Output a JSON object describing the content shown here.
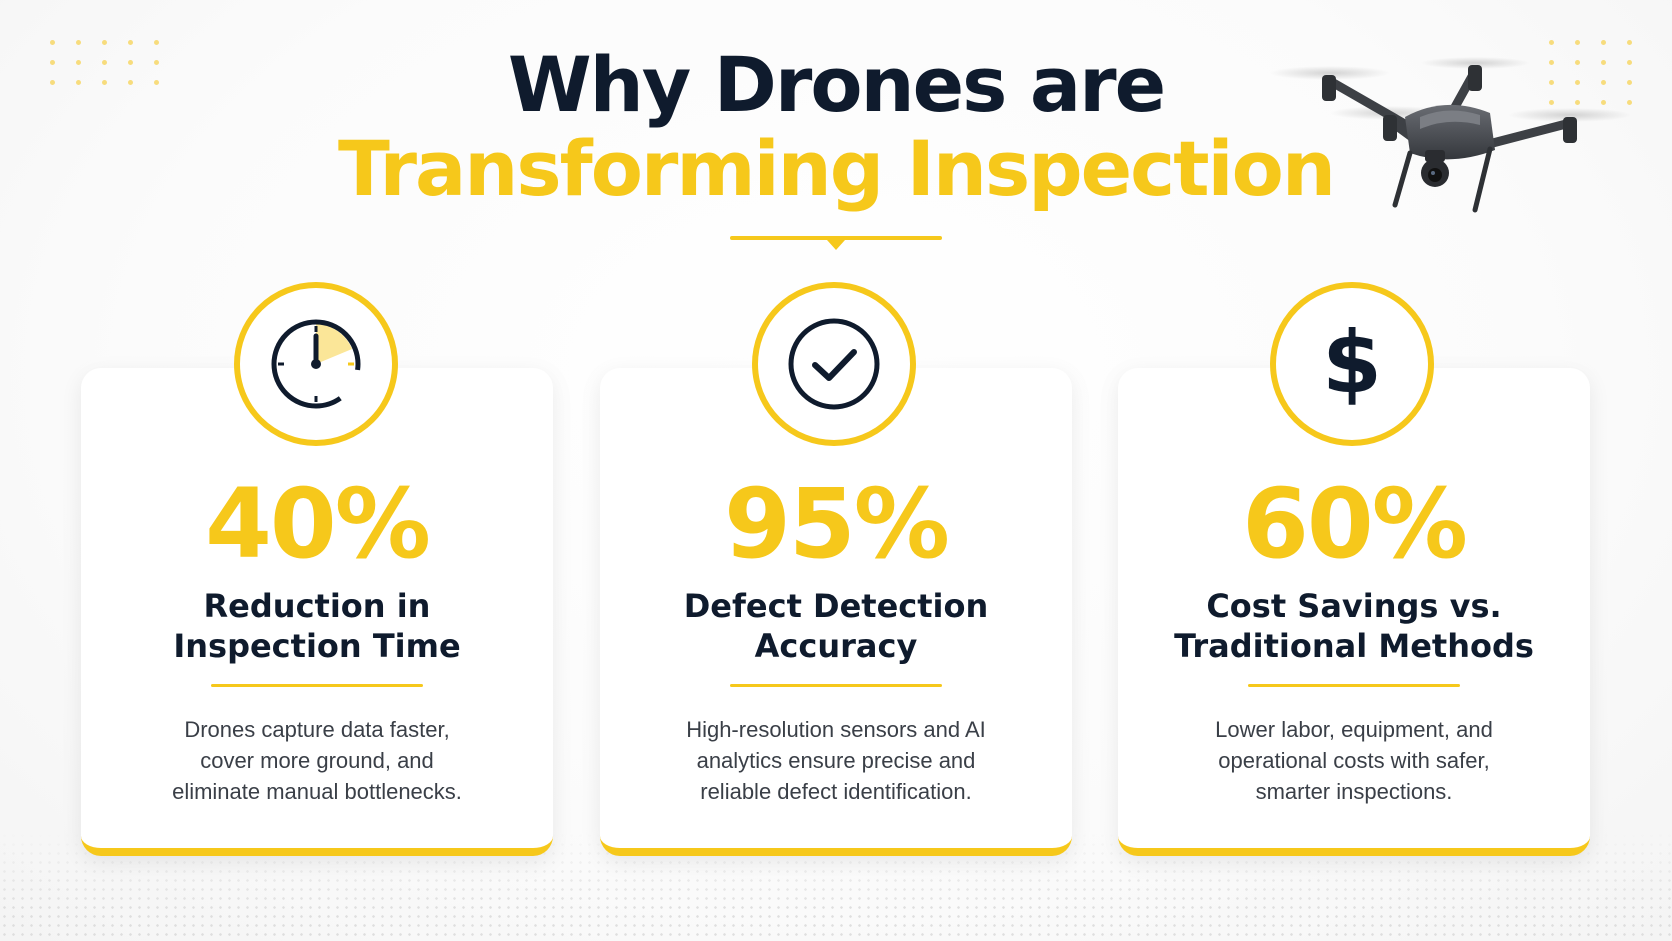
{
  "title": {
    "line1": "Why Drones are",
    "line2": "Transforming Inspection"
  },
  "colors": {
    "accent": "#f6c81b",
    "dark": "#0f1b2d",
    "body_text": "#3a3f47"
  },
  "cards": [
    {
      "icon": "stopwatch-icon",
      "stat": "40%",
      "heading_line1": "Reduction in",
      "heading_line2": "Inspection Time",
      "desc_line1": "Drones capture data faster,",
      "desc_line2": "cover more ground, and",
      "desc_line3": "eliminate manual bottlenecks."
    },
    {
      "icon": "checkmark-icon",
      "stat": "95%",
      "heading_line1": "Defect Detection",
      "heading_line2": "Accuracy",
      "desc_line1": "High-resolution sensors and AI",
      "desc_line2": "analytics ensure precise and",
      "desc_line3": "reliable defect identification."
    },
    {
      "icon": "dollar-icon",
      "stat": "60%",
      "heading_line1": "Cost Savings vs.",
      "heading_line2": "Traditional Methods",
      "desc_line1": "Lower labor, equipment, and",
      "desc_line2": "operational costs with safer,",
      "desc_line3": "smarter inspections."
    }
  ]
}
